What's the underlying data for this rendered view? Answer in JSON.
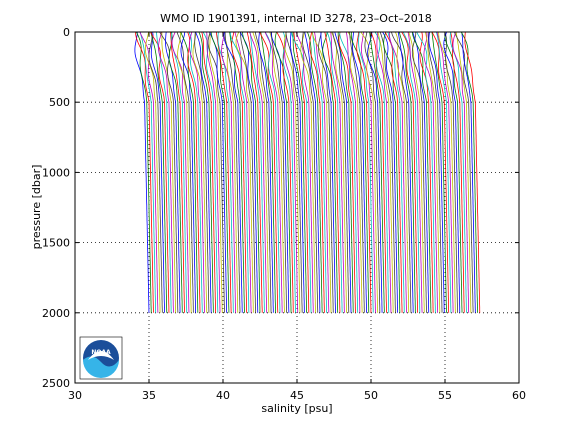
{
  "chart_data": {
    "type": "line",
    "title": "WMO ID 1901391, internal ID 3278, 23–Oct–2018",
    "xlabel": "salinity [psu]",
    "ylabel": "pressure [dbar]",
    "xlim": [
      30,
      60
    ],
    "ylim": [
      0,
      2500
    ],
    "y_reversed": true,
    "xticks": [
      30,
      35,
      40,
      45,
      50,
      55,
      60
    ],
    "yticks": [
      0,
      500,
      1000,
      1500,
      2000,
      2500
    ],
    "grid": true,
    "legend": "none",
    "profile_count": 150,
    "profile_offset_psu": 0.15,
    "surface_salinity_first": 34.0,
    "deep_salinity_first": 35.0,
    "max_pressure": 2000,
    "colors": [
      "#0000ff",
      "#008000",
      "#ff0000",
      "#00bfbf",
      "#bf00bf",
      "#bfbf00",
      "#404040"
    ],
    "logo": "NOAA"
  }
}
